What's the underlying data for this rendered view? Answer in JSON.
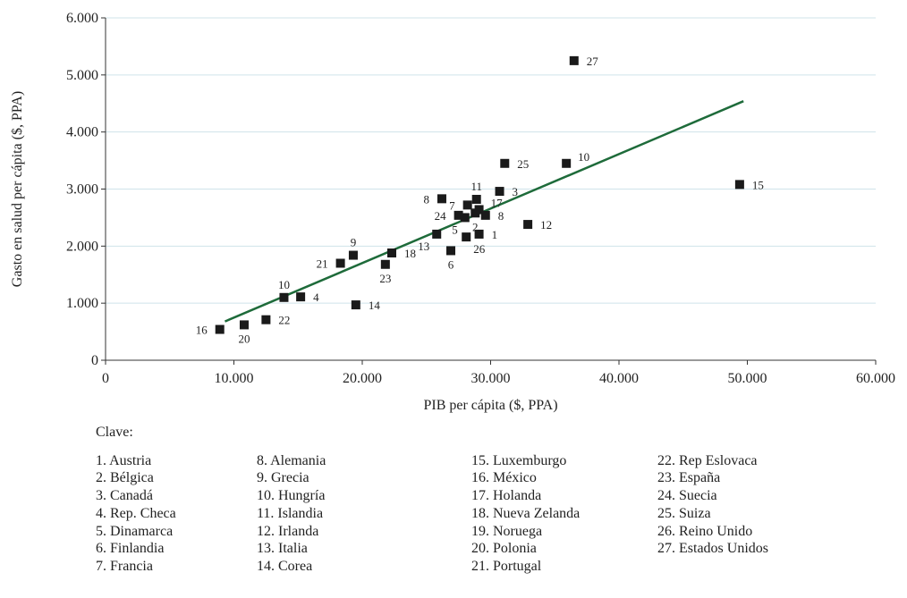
{
  "chart_data": {
    "type": "scatter",
    "xlabel": "PIB per cápita ($, PPA)",
    "ylabel": "Gasto en salud per cápita ($, PPA)",
    "xlim": [
      0,
      60000
    ],
    "ylim": [
      0,
      6000
    ],
    "xticks": [
      "0",
      "10.000",
      "20.000",
      "30.000",
      "40.000",
      "50.000",
      "60.000"
    ],
    "yticks": [
      "0",
      "1.000",
      "2.000",
      "3.000",
      "4.000",
      "5.000",
      "6.000"
    ],
    "grid": "horizontal",
    "colors": {
      "marker": "#1a1a1a",
      "trend": "#1e6b3a",
      "grid": "#cfe3ea"
    },
    "points": [
      {
        "label": "1",
        "x": 29100,
        "y": 2210,
        "pos": "right"
      },
      {
        "label": "2",
        "x": 28800,
        "y": 2580,
        "pos": "below"
      },
      {
        "label": "3",
        "x": 30700,
        "y": 2960,
        "pos": "right"
      },
      {
        "label": "4",
        "x": 15200,
        "y": 1110,
        "pos": "right"
      },
      {
        "label": "5",
        "x": 28000,
        "y": 2500,
        "pos": "below-left"
      },
      {
        "label": "6",
        "x": 26900,
        "y": 1920,
        "pos": "below"
      },
      {
        "label": "7",
        "x": 28200,
        "y": 2720,
        "pos": "left"
      },
      {
        "label": "8",
        "x": 29600,
        "y": 2540,
        "pos": "right"
      },
      {
        "label": "8",
        "x": 26200,
        "y": 2830,
        "pos": "left"
      },
      {
        "label": "9",
        "x": 19300,
        "y": 1840,
        "pos": "above"
      },
      {
        "label": "10",
        "x": 13900,
        "y": 1100,
        "pos": "above"
      },
      {
        "label": "10",
        "x": 35900,
        "y": 3450,
        "pos": "right-up"
      },
      {
        "label": "11",
        "x": 28900,
        "y": 2820,
        "pos": "above"
      },
      {
        "label": "12",
        "x": 32900,
        "y": 2380,
        "pos": "right"
      },
      {
        "label": "13",
        "x": 25800,
        "y": 2210,
        "pos": "below-left"
      },
      {
        "label": "14",
        "x": 19500,
        "y": 970,
        "pos": "right"
      },
      {
        "label": "15",
        "x": 49400,
        "y": 3080,
        "pos": "right"
      },
      {
        "label": "16",
        "x": 8900,
        "y": 540,
        "pos": "left"
      },
      {
        "label": "17",
        "x": 29100,
        "y": 2640,
        "pos": "right-up"
      },
      {
        "label": "18",
        "x": 22300,
        "y": 1880,
        "pos": "right"
      },
      {
        "label": "20",
        "x": 10800,
        "y": 620,
        "pos": "below"
      },
      {
        "label": "21",
        "x": 18300,
        "y": 1700,
        "pos": "left"
      },
      {
        "label": "22",
        "x": 12500,
        "y": 710,
        "pos": "right"
      },
      {
        "label": "23",
        "x": 21800,
        "y": 1680,
        "pos": "below"
      },
      {
        "label": "24",
        "x": 27500,
        "y": 2540,
        "pos": "left"
      },
      {
        "label": "25",
        "x": 31100,
        "y": 3450,
        "pos": "right"
      },
      {
        "label": "26",
        "x": 28100,
        "y": 2160,
        "pos": "below-right"
      },
      {
        "label": "27",
        "x": 36500,
        "y": 5250,
        "pos": "right"
      }
    ],
    "trendline": {
      "x1": 9300,
      "y1": 680,
      "x2": 49700,
      "y2": 4540
    }
  },
  "legend": {
    "title": "Clave:",
    "columns": [
      [
        "1.   Austria",
        "2.   Bélgica",
        "3.   Canadá",
        "4.   Rep. Checa",
        "5.   Dinamarca",
        "6.   Finlandia",
        "7.   Francia"
      ],
      [
        "8.   Alemania",
        "9.   Grecia",
        "10. Hungría",
        "11. Islandia",
        "12. Irlanda",
        "13. Italia",
        "14. Corea"
      ],
      [
        "15. Luxemburgo",
        "16. México",
        "17. Holanda",
        "18. Nueva Zelanda",
        "19. Noruega",
        "20. Polonia",
        "21. Portugal"
      ],
      [
        "22. Rep Eslovaca",
        "23. España",
        "24. Suecia",
        "25. Suiza",
        "26. Reino Unido",
        "27. Estados Unidos"
      ]
    ],
    "bold_items": [
      "23. España"
    ]
  }
}
